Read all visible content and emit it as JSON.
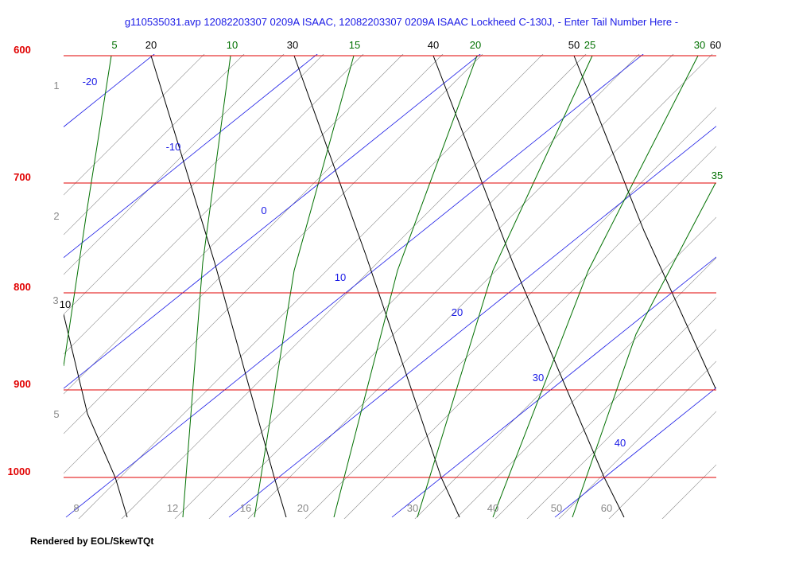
{
  "title": "g110535031.avp  12082203307 0209A ISAAC, 12082203307 0209A ISAAC Lockheed C-130J, - Enter Tail Number Here -",
  "footer": "Rendered by EOL/SkewTQt",
  "pressure_labels": [
    600,
    700,
    800,
    900,
    1000
  ],
  "isotherm_labels": [
    -20,
    -10,
    0,
    10,
    20,
    30,
    40
  ],
  "dry_adiabat_labels": [
    20,
    30,
    40,
    50,
    60,
    10
  ],
  "moist_adiabat_labels": [
    5,
    10,
    15,
    20,
    25,
    30,
    35
  ],
  "mixing_ratio_labels": [
    8,
    12,
    16,
    20,
    30,
    40,
    50,
    60
  ],
  "height_labels": [
    1,
    2,
    3,
    5
  ]
}
